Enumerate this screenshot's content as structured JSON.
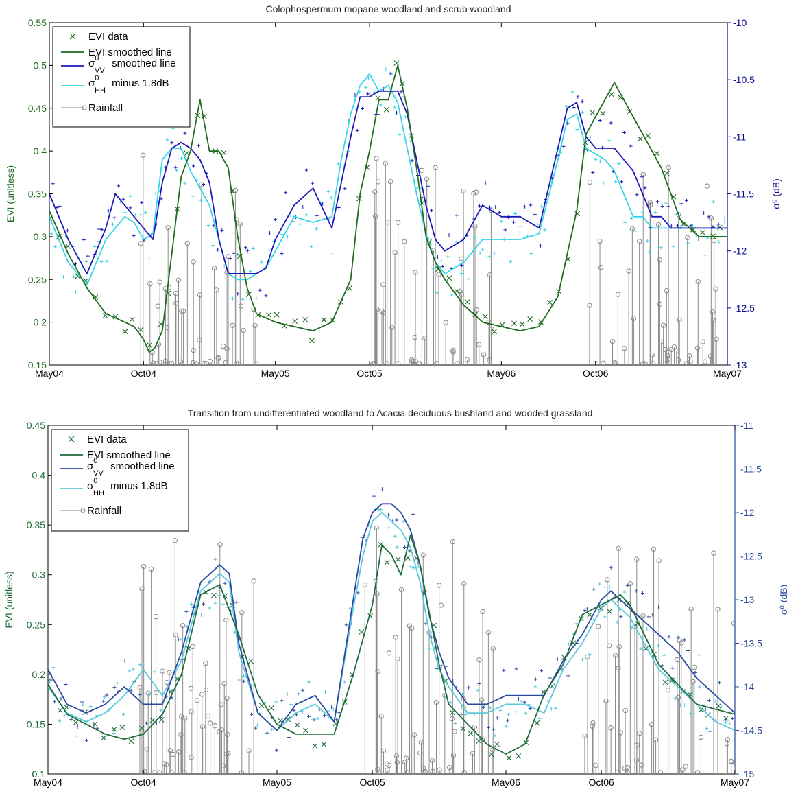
{
  "chart_data": [
    {
      "type": "line",
      "title": "Colophospermum mopane woodland and scrub woodland",
      "ylabel_left": "EVI (unitless)",
      "ylabel_right": "σ⁰ (dB)",
      "x_ticks": [
        "May04",
        "Oct04",
        "May05",
        "Oct05",
        "May06",
        "Oct06",
        "May07"
      ],
      "xlim": [
        "2004-05-01",
        "2007-05-01"
      ],
      "ylim_left": [
        0.15,
        0.55
      ],
      "ylim_right": [
        -13,
        -10
      ],
      "y_ticks_left": [
        "0.2",
        "0.25",
        "0.3",
        "0.35",
        "0.4",
        "0.45",
        "0.5",
        "0.55"
      ],
      "y_ticks_right": [
        "-13",
        "-12.5",
        "-12",
        "-11.5",
        "-11",
        "-10.5",
        "-10"
      ],
      "legend_position": "top-left",
      "legend": [
        {
          "label": "EVI data"
        },
        {
          "label": "EVI smoothed line"
        },
        {
          "label": "σVV0 smoothed line",
          "base": "σ",
          "sup": "0",
          "sub": "VV",
          "rest": " smoothed line"
        },
        {
          "label": "σHH0 minus 1.8dB",
          "base": "σ",
          "sup": "0",
          "sub": "HH",
          "rest": " minus 1.8dB"
        },
        {
          "label": "Rainfall"
        }
      ],
      "colors": {
        "evi": "#1f6b1f",
        "vv": "#1a1ab8",
        "hh": "#33d6e6",
        "rain": "#8a8a8a",
        "axis_right": "#0a0a8c"
      },
      "series": {
        "evi_smoothed": {
          "months": [
            0,
            1,
            2,
            3,
            4,
            4.5,
            5,
            5.3,
            5.6,
            6,
            6.5,
            7,
            7.5,
            8,
            8.5,
            9,
            9.5,
            10,
            10.5,
            11,
            11.5,
            12,
            13,
            14,
            15,
            16,
            16.5,
            17,
            17.5,
            18,
            18.5,
            19,
            19.5,
            20,
            20.5,
            21,
            22,
            23,
            24,
            25,
            26,
            27,
            28,
            28.5,
            29,
            29.5,
            30,
            30.5,
            31,
            31.5,
            32,
            32.5,
            33,
            33.5,
            34,
            34.5,
            35,
            35.5,
            36
          ],
          "values": [
            0.33,
            0.28,
            0.24,
            0.21,
            0.2,
            0.195,
            0.18,
            0.165,
            0.17,
            0.19,
            0.28,
            0.37,
            0.4,
            0.46,
            0.4,
            0.4,
            0.38,
            0.3,
            0.24,
            0.21,
            0.205,
            0.2,
            0.195,
            0.19,
            0.2,
            0.25,
            0.35,
            0.4,
            0.46,
            0.46,
            0.5,
            0.45,
            0.38,
            0.3,
            0.27,
            0.25,
            0.22,
            0.2,
            0.195,
            0.19,
            0.195,
            0.23,
            0.33,
            0.42,
            0.44,
            0.46,
            0.48,
            0.46,
            0.44,
            0.42,
            0.4,
            0.38,
            0.35,
            0.32,
            0.31,
            0.3,
            0.3,
            0.3,
            0.3
          ]
        },
        "vv_smoothed": {
          "months": [
            0,
            1,
            2,
            3,
            3.5,
            4,
            4.5,
            5,
            5.5,
            6,
            6.5,
            7,
            7.5,
            8,
            8.5,
            9,
            9.5,
            10,
            10.5,
            11,
            11.5,
            12,
            13,
            14,
            15,
            15.5,
            16,
            16.5,
            17,
            17.5,
            18,
            18.5,
            19,
            19.5,
            20,
            20.5,
            21,
            22,
            23,
            24,
            25,
            26,
            27,
            27.5,
            28,
            28.5,
            29,
            29.5,
            30,
            30.5,
            31,
            31.5,
            32,
            32.5,
            33,
            33.5,
            34,
            34.5,
            35,
            35.5,
            36
          ],
          "values": [
            -11.5,
            -11.9,
            -12.2,
            -11.8,
            -11.5,
            -11.6,
            -11.7,
            -11.8,
            -11.9,
            -11.4,
            -11.1,
            -11.05,
            -11.1,
            -11.2,
            -11.4,
            -11.9,
            -12.2,
            -12.2,
            -12.2,
            -12.2,
            -12.15,
            -11.9,
            -11.6,
            -11.45,
            -11.8,
            -11.4,
            -11.0,
            -10.65,
            -10.65,
            -10.6,
            -10.6,
            -10.6,
            -10.8,
            -11.2,
            -11.6,
            -11.9,
            -12.0,
            -11.9,
            -11.6,
            -11.7,
            -11.7,
            -11.8,
            -11.1,
            -10.75,
            -10.7,
            -11.0,
            -11.1,
            -11.1,
            -11.1,
            -11.2,
            -11.3,
            -11.5,
            -11.7,
            -11.7,
            -11.8,
            -11.8,
            -11.8,
            -11.8,
            -11.8,
            -11.8,
            -11.8
          ]
        },
        "hh_smoothed": {
          "months": [
            0,
            1,
            2,
            3,
            4,
            4.5,
            5,
            5.5,
            6,
            6.5,
            7,
            7.5,
            8,
            8.5,
            9,
            9.5,
            10,
            10.5,
            11,
            11.5,
            12,
            13,
            14,
            15,
            15.5,
            16,
            16.5,
            17,
            17.5,
            18,
            18.5,
            19,
            19.5,
            20,
            20.5,
            21,
            22,
            23,
            24,
            25,
            26,
            27,
            27.5,
            28,
            28.5,
            29,
            29.5,
            30,
            30.5,
            31,
            31.5,
            32,
            32.5,
            33,
            33.5,
            34,
            34.5,
            35,
            35.5,
            36
          ],
          "values": [
            -11.7,
            -12.1,
            -12.3,
            -11.9,
            -11.7,
            -11.75,
            -11.9,
            -11.85,
            -11.2,
            -11.1,
            -11.1,
            -11.3,
            -11.45,
            -11.6,
            -11.9,
            -12.2,
            -12.25,
            -12.25,
            -12.2,
            -12.15,
            -12.0,
            -11.7,
            -11.75,
            -11.7,
            -11.2,
            -10.8,
            -10.55,
            -10.45,
            -10.6,
            -10.55,
            -10.7,
            -11.1,
            -11.5,
            -11.85,
            -12.1,
            -12.2,
            -12.1,
            -11.9,
            -11.9,
            -11.9,
            -11.85,
            -11.2,
            -10.85,
            -10.8,
            -11.1,
            -11.15,
            -11.2,
            -11.3,
            -11.5,
            -11.7,
            -11.7,
            -11.8,
            -11.8,
            -11.8,
            -11.8,
            -11.8,
            -11.8,
            -11.8,
            -11.8,
            -11.8
          ]
        }
      }
    },
    {
      "type": "line",
      "title": "Transition from undifferentiated woodland to Acacia deciduous bushland and wooded grassland.",
      "ylabel_left": "EVI (unitless)",
      "ylabel_right": "σ⁰ (dB)",
      "x_ticks": [
        "May04",
        "Oct04",
        "May05",
        "Oct05",
        "May06",
        "Oct06",
        "May07"
      ],
      "xlim": [
        "2004-05-01",
        "2007-05-01"
      ],
      "ylim_left": [
        0.1,
        0.45
      ],
      "ylim_right": [
        -15,
        -11
      ],
      "y_ticks_left": [
        "0.1",
        "0.15",
        "0.2",
        "0.25",
        "0.3",
        "0.35",
        "0.4",
        "0.45"
      ],
      "y_ticks_right": [
        "-15",
        "-14.5",
        "-14",
        "-13.5",
        "-13",
        "-12.5",
        "-12",
        "-11.5",
        "-11"
      ],
      "legend_position": "top-left",
      "legend": [
        {
          "label": "EVI data"
        },
        {
          "label": "EVI smoothed line"
        },
        {
          "label": "σVV0 smoothed line",
          "base": "σ",
          "sup": "0",
          "sub": "VV",
          "rest": " smoothed line"
        },
        {
          "label": "σHH0 minus 1.8dB",
          "base": "σ",
          "sup": "0",
          "sub": "HH",
          "rest": " minus 1.8dB"
        },
        {
          "label": "Rainfall"
        }
      ],
      "colors": {
        "evi": "#1f6b3a",
        "vv": "#2a4aa0",
        "hh": "#5ac8dc",
        "rain": "#8a8a8a",
        "axis_right": "#2a4aa0"
      },
      "series": {
        "evi_smoothed": {
          "months": [
            0,
            1,
            2,
            3,
            4,
            5,
            6,
            7,
            8,
            9,
            10,
            11,
            12,
            13,
            14,
            15,
            16,
            17,
            17.5,
            18,
            18.5,
            19,
            19.5,
            20,
            20.5,
            21,
            22,
            23,
            24,
            25,
            26,
            27,
            28,
            29,
            30,
            30.5,
            31,
            31.5,
            32,
            32.5,
            33,
            33.5,
            34,
            35,
            36
          ],
          "values": [
            0.19,
            0.16,
            0.15,
            0.14,
            0.135,
            0.14,
            0.16,
            0.2,
            0.28,
            0.29,
            0.24,
            0.18,
            0.15,
            0.14,
            0.14,
            0.14,
            0.2,
            0.27,
            0.33,
            0.32,
            0.3,
            0.34,
            0.31,
            0.26,
            0.21,
            0.17,
            0.15,
            0.13,
            0.12,
            0.13,
            0.18,
            0.21,
            0.26,
            0.27,
            0.28,
            0.27,
            0.25,
            0.23,
            0.21,
            0.2,
            0.19,
            0.18,
            0.17,
            0.165,
            0.16
          ]
        },
        "vv_smoothed": {
          "months": [
            0,
            1,
            2,
            3,
            4,
            5,
            6,
            7,
            8,
            9,
            9.5,
            10,
            11,
            12,
            13,
            14,
            15,
            16,
            16.5,
            17,
            17.5,
            18,
            18.5,
            19,
            19.5,
            20,
            20.5,
            21,
            22,
            23,
            24,
            25,
            26,
            27,
            28,
            28.5,
            29,
            29.5,
            30,
            30.5,
            31,
            31.5,
            32,
            33,
            34,
            35,
            36
          ],
          "values": [
            -13.8,
            -14.2,
            -14.3,
            -14.2,
            -14.0,
            -14.2,
            -14.2,
            -13.6,
            -12.8,
            -12.6,
            -12.7,
            -13.5,
            -14.3,
            -14.5,
            -14.2,
            -14.1,
            -14.4,
            -13.0,
            -12.3,
            -12.0,
            -11.9,
            -11.9,
            -12.0,
            -12.2,
            -12.6,
            -13.2,
            -13.6,
            -13.9,
            -14.2,
            -14.2,
            -14.1,
            -14.1,
            -14.1,
            -13.7,
            -13.4,
            -13.2,
            -13.0,
            -12.9,
            -13.0,
            -13.1,
            -13.2,
            -13.3,
            -13.4,
            -13.6,
            -13.9,
            -14.1,
            -14.3
          ]
        },
        "hh_smoothed": {
          "months": [
            0,
            1,
            2,
            3,
            4,
            5,
            6,
            7,
            8,
            9,
            9.5,
            10,
            11,
            12,
            13,
            14,
            15,
            16,
            16.5,
            17,
            17.5,
            18,
            18.5,
            19,
            19.5,
            20,
            20.5,
            21,
            22,
            23,
            24,
            25,
            26,
            27,
            28,
            28.5,
            29,
            29.5,
            30,
            30.5,
            31,
            31.5,
            32,
            33,
            34,
            35,
            36
          ],
          "values": [
            -14.0,
            -14.3,
            -14.4,
            -14.3,
            -14.1,
            -13.8,
            -14.1,
            -13.7,
            -12.9,
            -12.7,
            -12.8,
            -13.6,
            -14.3,
            -14.5,
            -14.3,
            -14.2,
            -14.4,
            -13.1,
            -12.5,
            -12.1,
            -12.0,
            -12.1,
            -12.2,
            -12.4,
            -12.8,
            -13.4,
            -13.8,
            -14.0,
            -14.3,
            -14.3,
            -14.2,
            -14.2,
            -14.3,
            -13.8,
            -13.5,
            -13.3,
            -13.1,
            -13.0,
            -13.1,
            -13.2,
            -13.4,
            -13.6,
            -13.8,
            -14.0,
            -14.2,
            -14.4,
            -14.5
          ]
        }
      }
    }
  ]
}
